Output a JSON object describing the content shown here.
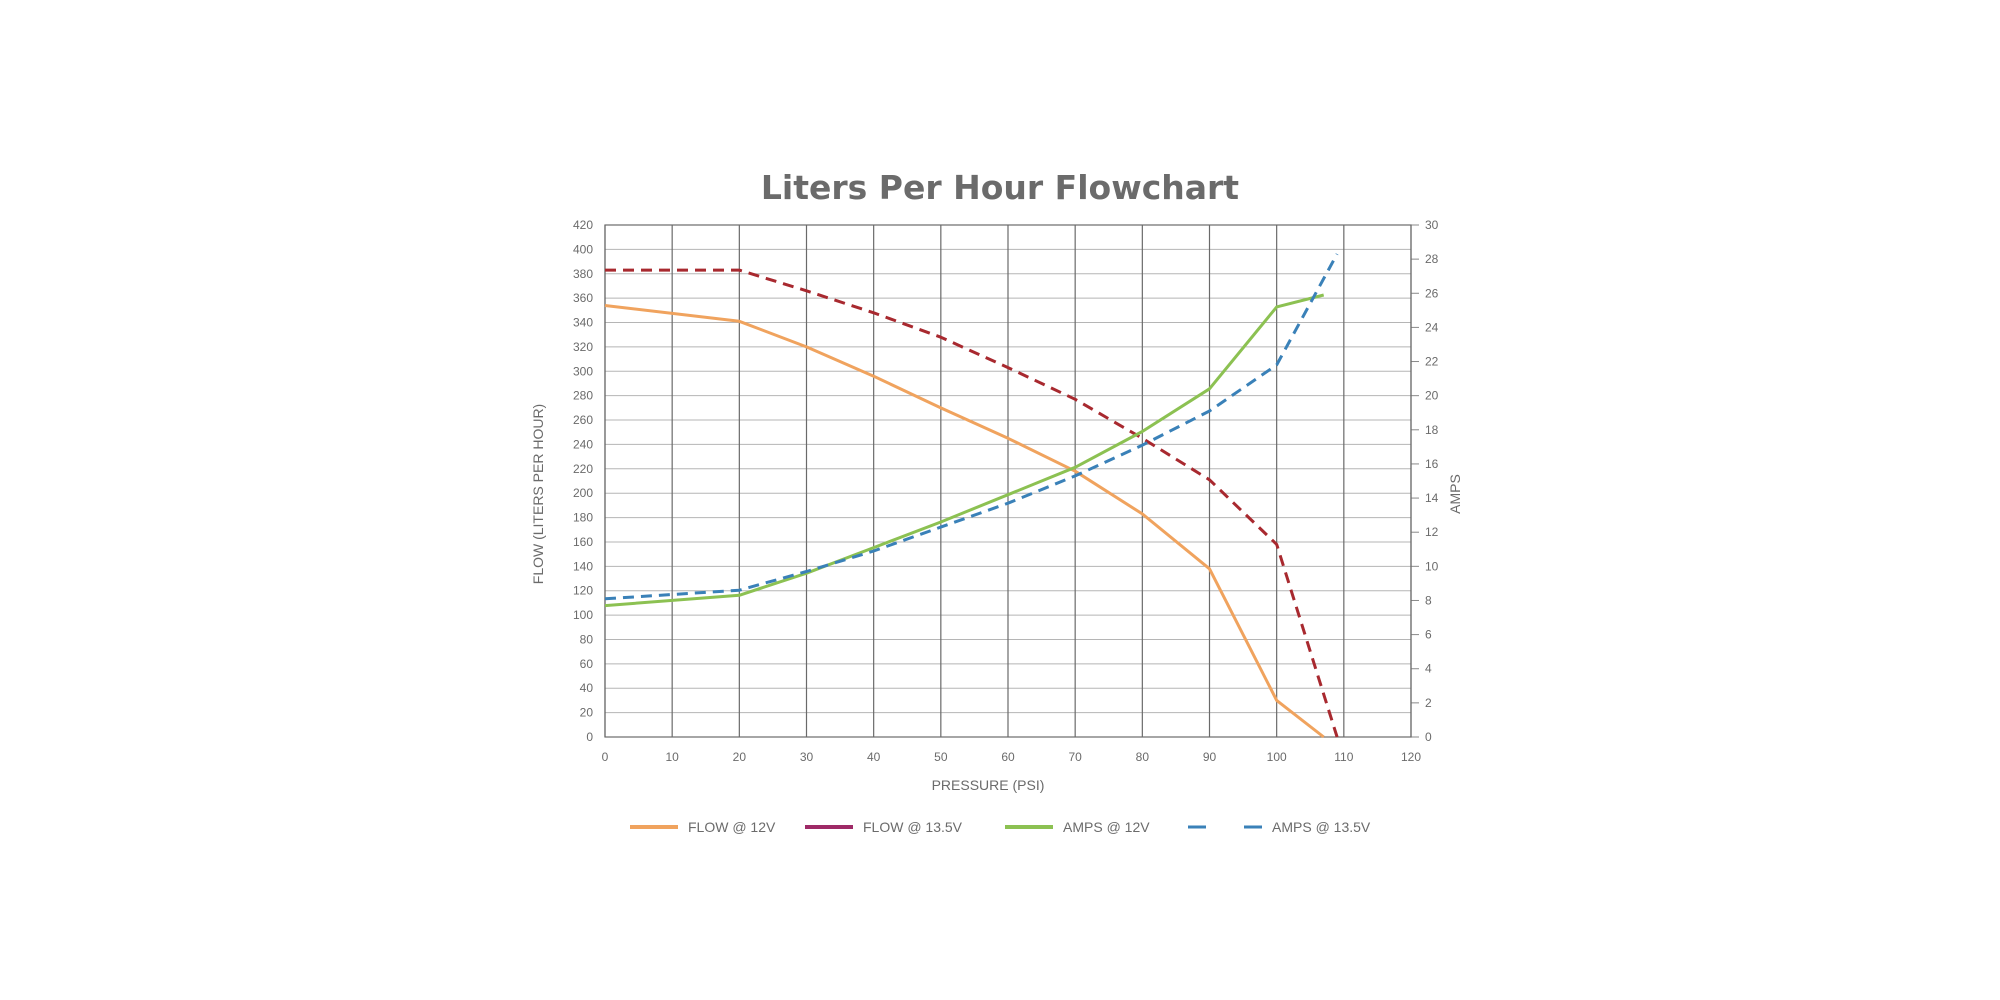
{
  "chart_data": {
    "type": "line",
    "title": "Liters Per Hour Flowchart",
    "xlabel": "PRESSURE (PSI)",
    "ylabel": "FLOW (LITERS PER HOUR)",
    "y2label": "AMPS",
    "xlim": [
      0,
      120
    ],
    "ylim": [
      0,
      420
    ],
    "y2lim": [
      0,
      30
    ],
    "xticks": [
      0,
      10,
      20,
      30,
      40,
      50,
      60,
      70,
      80,
      90,
      100,
      110,
      120
    ],
    "yticks": [
      0,
      20,
      40,
      60,
      80,
      100,
      120,
      140,
      160,
      180,
      200,
      220,
      240,
      260,
      280,
      300,
      320,
      340,
      360,
      380,
      400,
      420
    ],
    "y2ticks": [
      0,
      2,
      4,
      6,
      8,
      10,
      12,
      14,
      16,
      18,
      20,
      22,
      24,
      26,
      28,
      30
    ],
    "grid": true,
    "legend_position": "bottom",
    "series": [
      {
        "name": "FLOW @ 12V",
        "axis": "left",
        "color": "#f0a35e",
        "dashed": false,
        "x": [
          0,
          20,
          30,
          40,
          50,
          60,
          70,
          80,
          90,
          100,
          107
        ],
        "y": [
          354,
          341,
          320,
          296,
          270,
          245,
          218,
          183,
          138,
          30,
          0
        ]
      },
      {
        "name": "FLOW @ 13.5V",
        "axis": "left",
        "color": "#a8292f",
        "legend_color": "#9e2a67",
        "dashed": true,
        "x": [
          0,
          20,
          30,
          40,
          50,
          60,
          70,
          80,
          90,
          100,
          109
        ],
        "y": [
          383,
          383,
          366,
          348,
          328,
          303,
          277,
          245,
          211,
          158,
          0
        ]
      },
      {
        "name": "AMPS @ 12V",
        "axis": "right",
        "color": "#8cc152",
        "dashed": false,
        "x": [
          0,
          20,
          30,
          40,
          50,
          60,
          70,
          80,
          90,
          100,
          107
        ],
        "y": [
          7.7,
          8.3,
          9.6,
          11.1,
          12.6,
          14.2,
          15.8,
          17.9,
          20.4,
          25.2,
          25.9
        ]
      },
      {
        "name": "AMPS @ 13.5V",
        "axis": "right",
        "color": "#3a81b8",
        "dashed": true,
        "x": [
          0,
          20,
          30,
          40,
          50,
          60,
          70,
          80,
          90,
          100,
          109
        ],
        "y": [
          8.1,
          8.6,
          9.7,
          10.9,
          12.3,
          13.7,
          15.3,
          17.1,
          19.1,
          21.8,
          28.3
        ]
      }
    ]
  }
}
